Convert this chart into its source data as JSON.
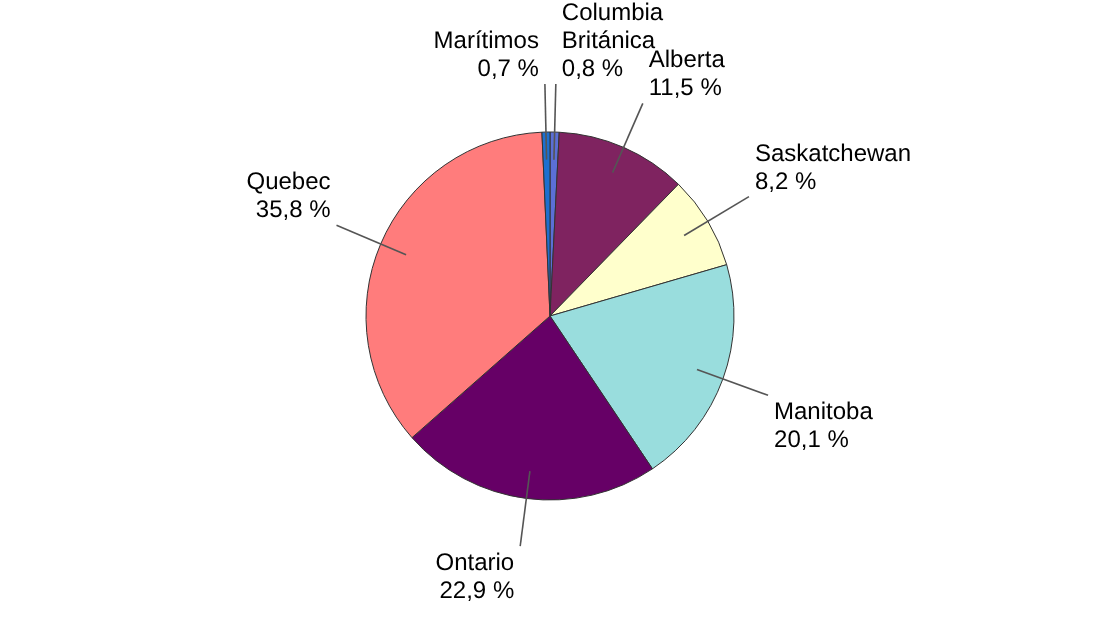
{
  "chart_data": {
    "type": "pie",
    "categories": [
      "Columbia Británica",
      "Alberta",
      "Saskatchewan",
      "Manitoba",
      "Ontario",
      "Quebec",
      "Marítimos"
    ],
    "values": [
      0.8,
      11.5,
      8.2,
      20.1,
      22.9,
      35.8,
      0.7
    ],
    "value_labels": [
      "0,8 %",
      "11,5 %",
      "8,2 %",
      "20,1 %",
      "22,9 %",
      "35,8 %",
      "0,7 %"
    ],
    "colors": [
      "#5b6fd6",
      "#7f2360",
      "#ffffcc",
      "#99dddd",
      "#660066",
      "#ff7c7c",
      "#1e6fcf"
    ]
  }
}
